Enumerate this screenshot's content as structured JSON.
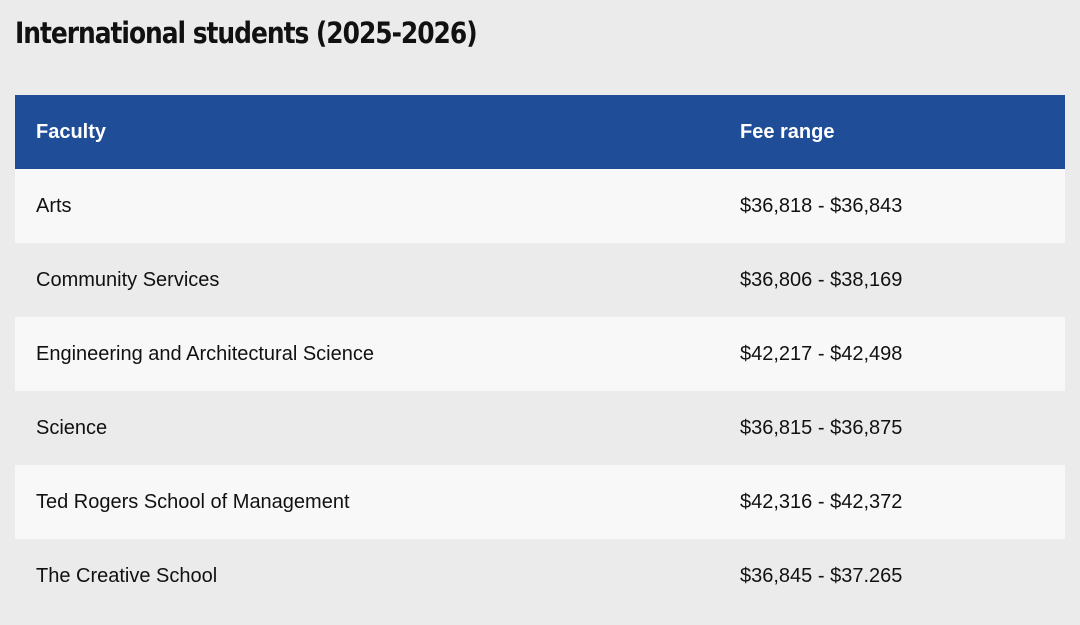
{
  "page": {
    "title": "International students (2025-2026)"
  },
  "table": {
    "headers": {
      "faculty": "Faculty",
      "fee_range": "Fee range"
    },
    "rows": [
      {
        "faculty": "Arts",
        "fee_range": "$36,818 - $36,843"
      },
      {
        "faculty": "Community Services",
        "fee_range": "$36,806 - $38,169"
      },
      {
        "faculty": "Engineering and Architectural Science",
        "fee_range": "$42,217 - $42,498"
      },
      {
        "faculty": "Science",
        "fee_range": "$36,815 - $36,875"
      },
      {
        "faculty": "Ted Rogers School of Management",
        "fee_range": "$42,316 - $42,372"
      },
      {
        "faculty": "The Creative School",
        "fee_range": "$36,845 - $37.265"
      }
    ]
  },
  "colors": {
    "header_background": "#1f4d97",
    "header_text": "#ffffff",
    "page_background": "#ebebeb",
    "row_light": "#f8f8f8"
  }
}
